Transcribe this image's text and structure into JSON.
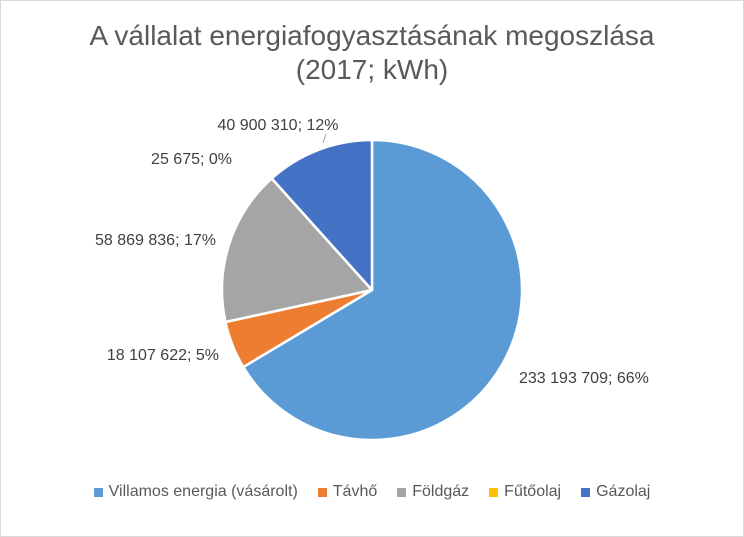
{
  "chart_data": {
    "type": "pie",
    "title": "A vállalat energiafogyasztásának megoszlása",
    "subtitle": "(2017; kWh)",
    "legend_position": "bottom",
    "slices": [
      {
        "name": "Villamos energia (vásárolt)",
        "value": 233193709,
        "label": "233 193 709; 66%",
        "color": "#5b9bd5"
      },
      {
        "name": "Távhő",
        "value": 18107622,
        "label": "18 107 622; 5%",
        "color": "#ed7d31"
      },
      {
        "name": "Földgáz",
        "value": 58869836,
        "label": "58 869 836; 17%",
        "color": "#a5a5a5"
      },
      {
        "name": "Fűtőolaj",
        "value": 25675,
        "label": "25 675; 0%",
        "color": "#ffc000"
      },
      {
        "name": "Gázolaj",
        "value": 40900310,
        "label": "40 900 310; 12%",
        "color": "#4472c4"
      }
    ]
  }
}
